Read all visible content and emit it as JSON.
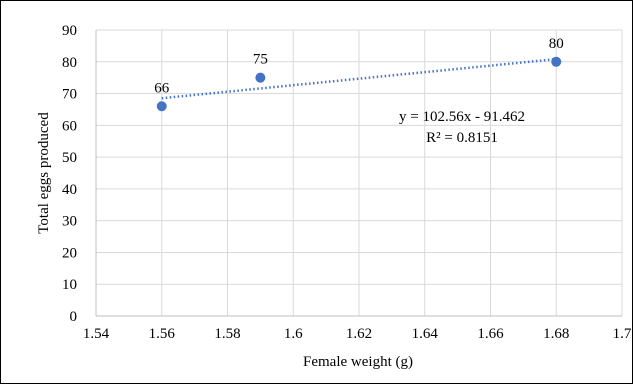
{
  "chart_data": {
    "type": "scatter",
    "title": "",
    "xlabel": "Female weight (g)",
    "ylabel": "Total eggs produced",
    "xlim": [
      1.54,
      1.7
    ],
    "ylim": [
      0,
      90
    ],
    "x_ticks": [
      "1.54",
      "1.56",
      "1.58",
      "1.6",
      "1.62",
      "1.64",
      "1.66",
      "1.68",
      "1.7"
    ],
    "y_ticks": [
      "0",
      "10",
      "20",
      "30",
      "40",
      "50",
      "60",
      "70",
      "80",
      "90"
    ],
    "grid": true,
    "legend": "none",
    "points": [
      {
        "x": 1.56,
        "y": 66,
        "label": "66"
      },
      {
        "x": 1.59,
        "y": 75,
        "label": "75"
      },
      {
        "x": 1.68,
        "y": 80,
        "label": "80"
      }
    ],
    "trendline": {
      "type": "linear",
      "slope": 102.56,
      "intercept": -91.462,
      "x_range": [
        1.56,
        1.68
      ]
    },
    "annotations": {
      "equation": "y = 102.56x - 91.462",
      "r_squared": "R² = 0.8151"
    },
    "colors": {
      "marker": "#4472C4",
      "trendline": "#4472C4",
      "grid": "#D9D9D9",
      "axis": "#BFBFBF"
    }
  }
}
